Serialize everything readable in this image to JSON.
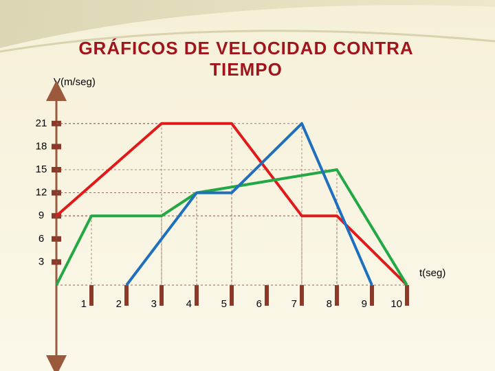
{
  "chart_data": {
    "type": "line",
    "title": "GRÁFICOS DE VELOCIDAD CONTRA",
    "subtitle": "TIEMPO",
    "y_label": "V(m/seg)",
    "x_label": "t(seg)",
    "xlim": [
      0,
      10
    ],
    "ylim": [
      -10,
      25
    ],
    "xticks": [
      1,
      2,
      3,
      4,
      5,
      6,
      7,
      8,
      9,
      10
    ],
    "yticks": [
      3,
      6,
      9,
      12,
      15,
      18,
      21
    ],
    "series": [
      {
        "color": "#e01a1a",
        "x": [
          0,
          3,
          5,
          7,
          8,
          10
        ],
        "values": [
          9,
          21,
          21,
          9,
          9,
          0
        ]
      },
      {
        "color": "#22a845",
        "x": [
          0,
          1,
          3,
          4,
          8,
          10
        ],
        "values": [
          0,
          9,
          9,
          12,
          15,
          0
        ]
      },
      {
        "color": "#1f6fbf",
        "x": [
          2,
          4,
          5,
          7,
          9
        ],
        "values": [
          0,
          12,
          12,
          21,
          0
        ]
      }
    ]
  }
}
